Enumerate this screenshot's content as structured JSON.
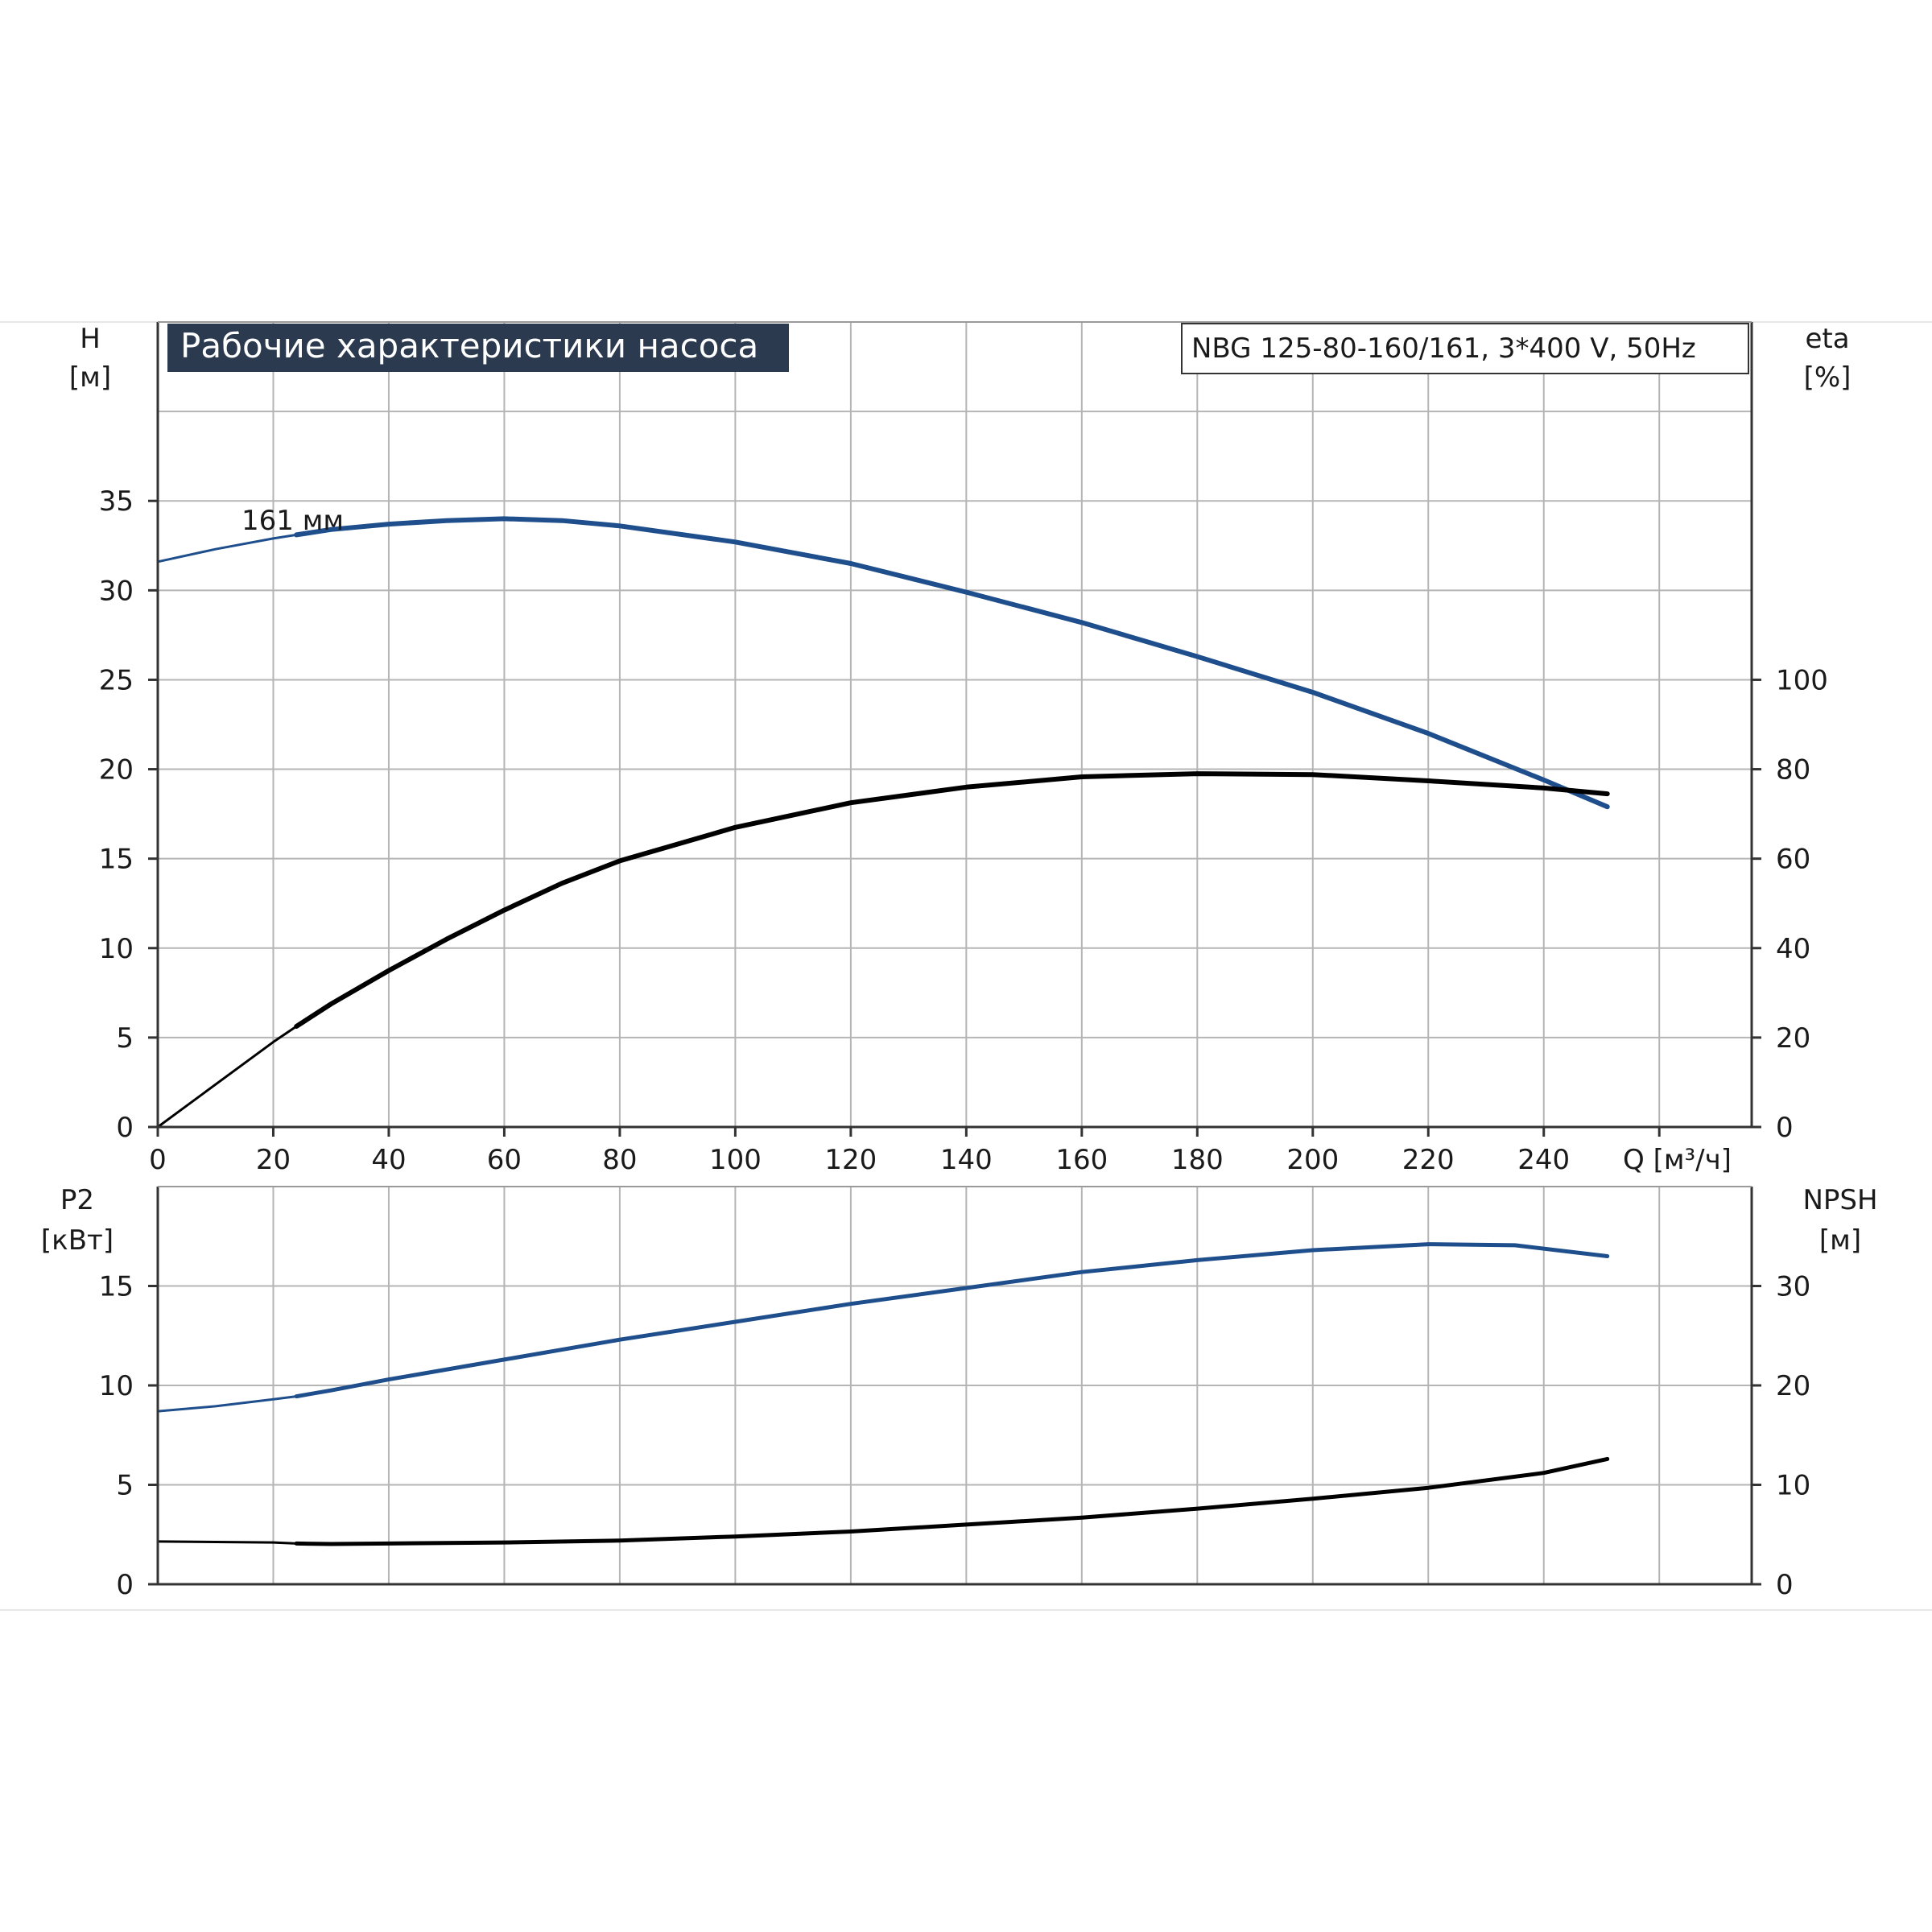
{
  "chart_data": [
    {
      "type": "line",
      "title": "Рабочие характеристики насоса",
      "subtitle": "NBG 125-80-160/161, 3*400 V, 50Hz",
      "xlabel": "Q [м³/ч]",
      "xlim": [
        0,
        276
      ],
      "x_ticks": [
        "0",
        "20",
        "40",
        "60",
        "80",
        "100",
        "120",
        "140",
        "160",
        "180",
        "200",
        "220",
        "240"
      ],
      "ylabel_left": [
        "H",
        "[м]"
      ],
      "ylim_left": [
        0,
        45
      ],
      "y_ticks_left": [
        "0",
        "5",
        "10",
        "15",
        "20",
        "25",
        "30",
        "35"
      ],
      "ylabel_right": [
        "eta",
        "[%]"
      ],
      "ylim_right": [
        0,
        180
      ],
      "y_ticks_right": [
        "0",
        "20",
        "40",
        "60",
        "80",
        "100"
      ],
      "grid": true,
      "annotations": [
        "161 мм"
      ],
      "colors": {
        "head": "#1f4e8c",
        "efficiency": "#000000",
        "grid": "#b5b5b5",
        "title_bg": "#2b3a4f"
      },
      "series": [
        {
          "axis": "left",
          "color": "#1f4e8c",
          "x": [
            0,
            10,
            20,
            24,
            30,
            40,
            50,
            60,
            70,
            80,
            100,
            120,
            140,
            160,
            180,
            200,
            220,
            240,
            251
          ],
          "y": [
            31.6,
            32.3,
            32.9,
            33.1,
            33.4,
            33.7,
            33.9,
            34.0,
            33.9,
            33.6,
            32.7,
            31.5,
            29.9,
            28.2,
            26.3,
            24.3,
            22.0,
            19.4,
            17.9
          ]
        },
        {
          "axis": "right",
          "color": "#000000",
          "x": [
            0,
            10,
            20,
            24,
            30,
            40,
            50,
            60,
            70,
            80,
            100,
            120,
            140,
            160,
            180,
            200,
            220,
            240,
            251
          ],
          "y": [
            0,
            9.5,
            19.0,
            22.5,
            27.5,
            35.0,
            42.0,
            48.5,
            54.5,
            59.5,
            67.0,
            72.5,
            76.0,
            78.3,
            79.0,
            78.8,
            77.4,
            75.8,
            74.5
          ]
        }
      ]
    },
    {
      "type": "line",
      "xlim": [
        0,
        276
      ],
      "ylabel_left": [
        "P2",
        "[кВт]"
      ],
      "ylim_left": [
        0,
        20
      ],
      "y_ticks_left": [
        "0",
        "5",
        "10",
        "15"
      ],
      "ylabel_right": [
        "NPSH",
        "[м]"
      ],
      "ylim_right": [
        0,
        40
      ],
      "y_ticks_right": [
        "0",
        "10",
        "20",
        "30"
      ],
      "grid": true,
      "colors": {
        "power": "#1f4e8c",
        "npsh": "#000000"
      },
      "series": [
        {
          "axis": "left",
          "color": "#1f4e8c",
          "x": [
            0,
            10,
            20,
            24,
            30,
            40,
            60,
            80,
            100,
            120,
            140,
            160,
            180,
            200,
            220,
            235,
            251
          ],
          "y": [
            8.7,
            8.95,
            9.3,
            9.45,
            9.75,
            10.3,
            11.3,
            12.3,
            13.2,
            14.1,
            14.9,
            15.7,
            16.3,
            16.8,
            17.1,
            17.05,
            16.5
          ]
        },
        {
          "axis": "right",
          "color": "#000000",
          "x": [
            0,
            10,
            20,
            24,
            30,
            40,
            60,
            80,
            100,
            120,
            140,
            160,
            180,
            200,
            220,
            240,
            251
          ],
          "y": [
            4.3,
            4.25,
            4.2,
            4.1,
            4.05,
            4.1,
            4.2,
            4.4,
            4.8,
            5.3,
            6.0,
            6.7,
            7.6,
            8.6,
            9.7,
            11.2,
            12.6
          ]
        }
      ]
    }
  ]
}
